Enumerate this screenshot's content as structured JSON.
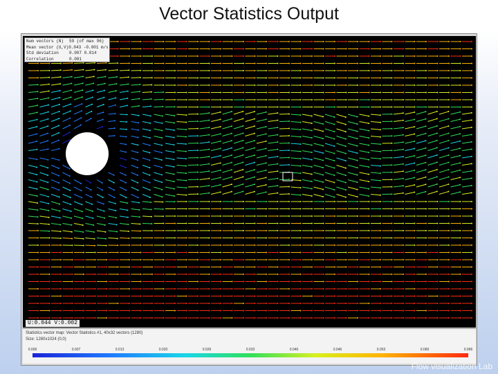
{
  "slide": {
    "title": "Vector Statistics Output",
    "watermark": "Flow visualization Lab"
  },
  "stats_box": {
    "rows": [
      {
        "label": "Num vectors (N)",
        "value": "59 (of max 96)"
      },
      {
        "label": "Mean vector (U,V)",
        "value": "0.043 -0.001 m/s"
      },
      {
        "label": "Std deviation",
        "value": "0.007 0.014"
      },
      {
        "label": "Correlation",
        "value": "0.081"
      }
    ]
  },
  "cursor_readout": {
    "text": "U:0.044  V:0.002"
  },
  "status": {
    "line1": "Statistics vector map: Vector Statistics #1, 40x32 vectors (1280)",
    "line2": "Size: 1280x1024 (0,0)"
  },
  "colorbar": {
    "ticks": [
      "0.000",
      "0.007",
      "0.013",
      "0.020",
      "0.026",
      "0.033",
      "0.040",
      "0.046",
      "0.053",
      "0.060",
      "0.066"
    ],
    "colors": [
      "#1a24d8",
      "#1f7bff",
      "#19d6e8",
      "#2fe05a",
      "#d8f020",
      "#ffb400",
      "#ff2a10"
    ]
  },
  "field": {
    "obstacle_color": "#ffffff",
    "background": "#000000"
  }
}
